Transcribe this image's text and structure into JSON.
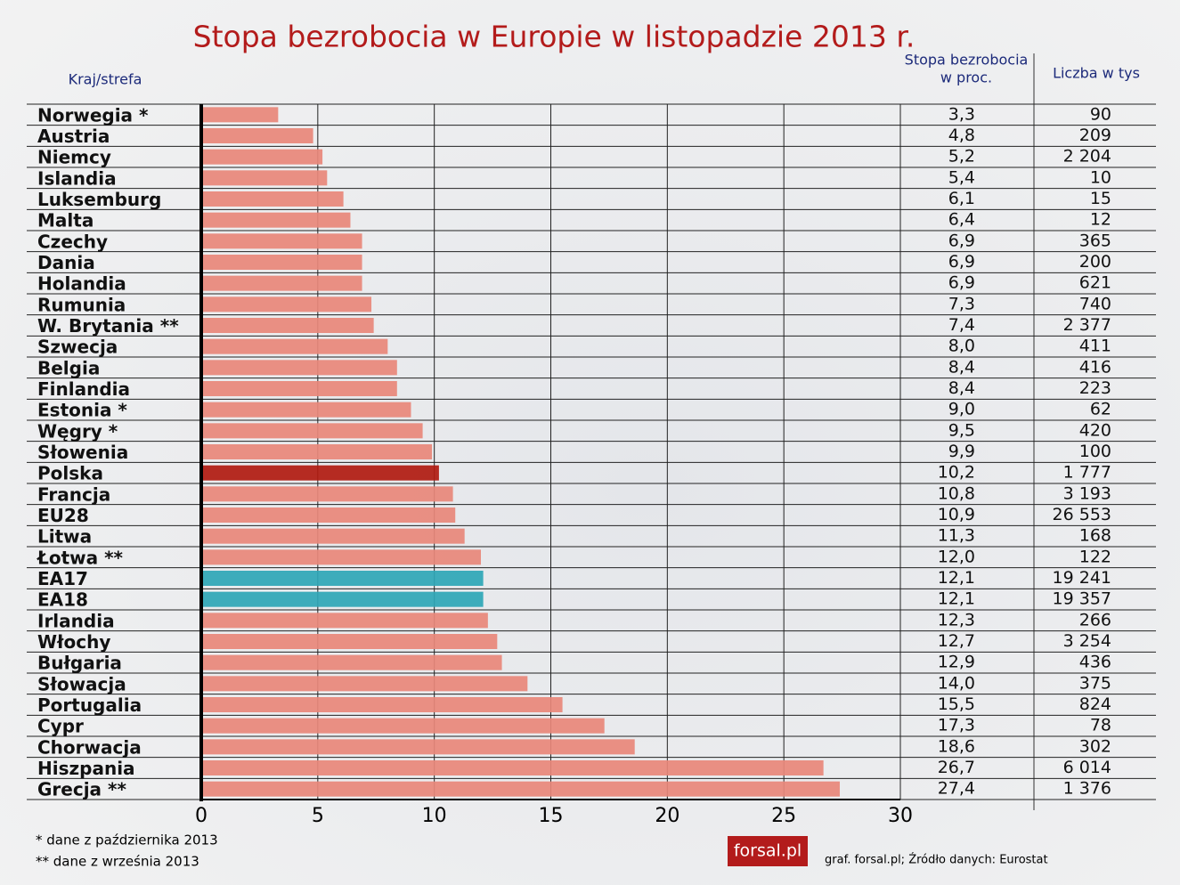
{
  "chart_data": {
    "type": "bar",
    "orientation": "horizontal",
    "title": "Stopa bezrobocia w Europie w listopadzie 2013 r.",
    "category_header": "Kraj/strefa",
    "value_header": [
      "Stopa bezrobocia",
      "w proc."
    ],
    "count_header": "Liczba w tys",
    "categories": [
      "Norwegia *",
      "Austria",
      "Niemcy",
      "Islandia",
      "Luksemburg",
      "Malta",
      "Czechy",
      "Dania",
      "Holandia",
      "Rumunia",
      "W. Brytania **",
      "Szwecja",
      "Belgia",
      "Finlandia",
      "Estonia *",
      "Węgry *",
      "Słowenia",
      "Polska",
      "Francja",
      "EU28",
      "Litwa",
      "Łotwa **",
      "EA17",
      "EA18",
      "Irlandia",
      "Włochy",
      "Bułgaria",
      "Słowacja",
      "Portugalia",
      "Cypr",
      "Chorwacja",
      "Hiszpania",
      "Grecja **"
    ],
    "values": [
      3.3,
      4.8,
      5.2,
      5.4,
      6.1,
      6.4,
      6.9,
      6.9,
      6.9,
      7.3,
      7.4,
      8.0,
      8.4,
      8.4,
      9.0,
      9.5,
      9.9,
      10.2,
      10.8,
      10.9,
      11.3,
      12.0,
      12.1,
      12.1,
      12.3,
      12.7,
      12.9,
      14.0,
      15.5,
      17.3,
      18.6,
      26.7,
      27.4
    ],
    "value_labels": [
      "3,3",
      "4,8",
      "5,2",
      "5,4",
      "6,1",
      "6,4",
      "6,9",
      "6,9",
      "6,9",
      "7,3",
      "7,4",
      "8,0",
      "8,4",
      "8,4",
      "9,0",
      "9,5",
      "9,9",
      "10,2",
      "10,8",
      "10,9",
      "11,3",
      "12,0",
      "12,1",
      "12,1",
      "12,3",
      "12,7",
      "12,9",
      "14,0",
      "15,5",
      "17,3",
      "18,6",
      "26,7",
      "27,4"
    ],
    "counts": [
      "90",
      "209",
      "2 204",
      "10",
      "15",
      "12",
      "365",
      "200",
      "621",
      "740",
      "2 377",
      "411",
      "416",
      "223",
      "62",
      "420",
      "100",
      "1 777",
      "3 193",
      "26 553",
      "168",
      "122",
      "19 241",
      "19 357",
      "266",
      "3 254",
      "436",
      "375",
      "824",
      "78",
      "302",
      "6 014",
      "1 376"
    ],
    "colors": [
      "#e8877a",
      "#e8877a",
      "#e8877a",
      "#e8877a",
      "#e8877a",
      "#e8877a",
      "#e8877a",
      "#e8877a",
      "#e8877a",
      "#e8877a",
      "#e8877a",
      "#e8877a",
      "#e8877a",
      "#e8877a",
      "#e8877a",
      "#e8877a",
      "#e8877a",
      "#b01a10",
      "#e8877a",
      "#e8877a",
      "#e8877a",
      "#e8877a",
      "#2ea6b6",
      "#2ea6b6",
      "#e8877a",
      "#e8877a",
      "#e8877a",
      "#e8877a",
      "#e8877a",
      "#e8877a",
      "#e8877a",
      "#e8877a",
      "#e8877a"
    ],
    "xlim": [
      0,
      30
    ],
    "xticks": [
      0,
      5,
      10,
      15,
      20,
      25,
      30
    ],
    "grid": true,
    "footnotes": [
      "* dane z października 2013",
      "** dane z września 2013"
    ],
    "logo": "forsal.pl",
    "source": "graf. forsal.pl;  Źródło danych: Eurostat"
  }
}
